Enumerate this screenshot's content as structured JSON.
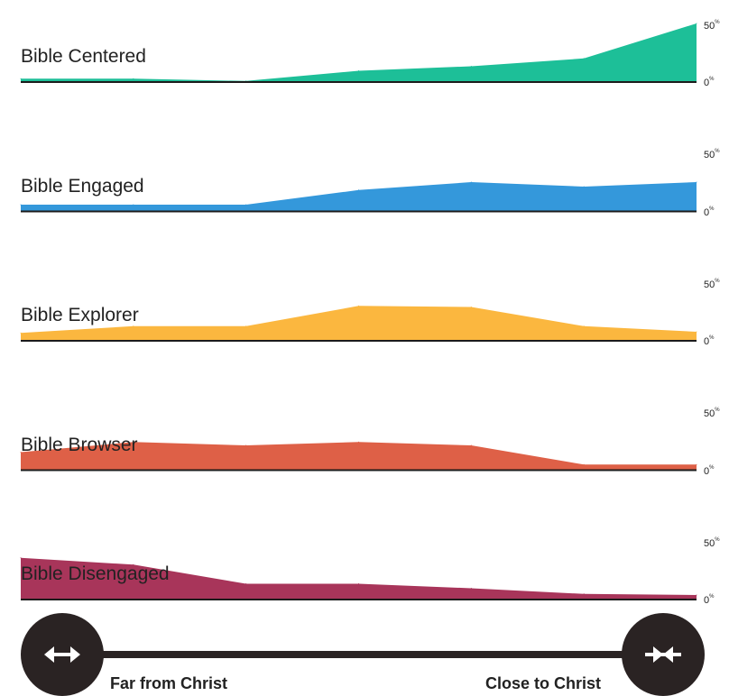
{
  "chart_data": {
    "type": "area",
    "x": [
      1,
      2,
      3,
      4,
      5,
      6,
      7
    ],
    "y_ticks": {
      "top": "50",
      "bottom": "0",
      "unit": "%"
    },
    "ylim": [
      0,
      50
    ],
    "grid": false,
    "series": [
      {
        "name": "Bible Centered",
        "color": "#1dbf98",
        "values": [
          3,
          3,
          1,
          10,
          14,
          21,
          52
        ]
      },
      {
        "name": "Bible Engaged",
        "color": "#3498db",
        "values": [
          6,
          6,
          6,
          19,
          26,
          22,
          26
        ]
      },
      {
        "name": "Bible Explorer",
        "color": "#fbb73f",
        "values": [
          7,
          13,
          13,
          31,
          30,
          13,
          8
        ]
      },
      {
        "name": "Bible Browser",
        "color": "#de6047",
        "values": [
          16,
          25,
          22,
          25,
          22,
          5,
          5
        ]
      },
      {
        "name": "Bible Disengaged",
        "color": "#a8355a",
        "values": [
          37,
          31,
          14,
          14,
          10,
          5,
          4
        ]
      }
    ]
  },
  "spectrum": {
    "left_label": "Far from Christ",
    "right_label": "Close to Christ",
    "left_icon": "arrows-apart-icon",
    "right_icon": "arrows-together-icon",
    "color": "#2a2323"
  }
}
